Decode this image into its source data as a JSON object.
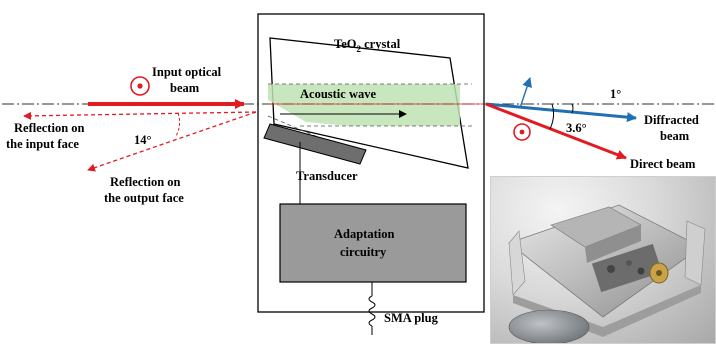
{
  "labels": {
    "input_beam_line1": "Input optical",
    "input_beam_line2": "beam",
    "reflection_input_line1": "Reflection on",
    "reflection_input_line2": "the input face",
    "angle_14": "14°",
    "reflection_output_line1": "Reflection on",
    "reflection_output_line2": "the output face",
    "crystal_prefix": "TeO",
    "crystal_sub": "2",
    "crystal_suffix": " crystal",
    "acoustic_wave": "Acoustic wave",
    "transducer": "Transducer",
    "adaptation_line1": "Adaptation",
    "adaptation_line2": "circuitry",
    "sma_plug": "SMA plug",
    "angle_1": "1°",
    "angle_3_6": "3.6°",
    "diffracted_line1": "Diffracted",
    "diffracted_line2": "beam",
    "direct_beam": "Direct beam"
  },
  "colors": {
    "red_beam": "#e01b22",
    "blue_beam": "#1f6fb2",
    "acoustic_fill": "#bfe3b4",
    "box_gray": "#9a9a9a",
    "transducer_gray": "#6e6e6e"
  }
}
